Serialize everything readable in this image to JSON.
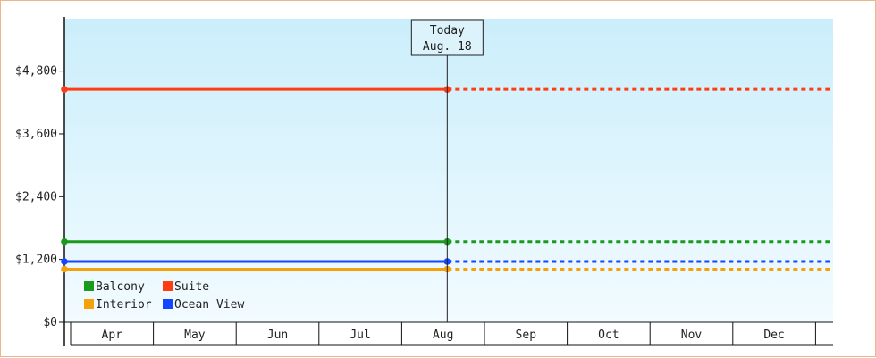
{
  "chart_data": {
    "type": "line",
    "yticks": [
      "$0",
      "$1,200",
      "$2,400",
      "$3,600",
      "$4,800"
    ],
    "ylim": [
      0,
      5800
    ],
    "categories": [
      "Apr",
      "May",
      "Jun",
      "Jul",
      "Aug",
      "Sep",
      "Oct",
      "Nov",
      "Dec"
    ],
    "today": {
      "line1": "Today",
      "line2": "Aug. 18",
      "month_index": 4.55
    },
    "series": [
      {
        "name": "Balcony",
        "color": "#1a9a1a",
        "value": 1540
      },
      {
        "name": "Suite",
        "color": "#ff3c14",
        "value": 4450
      },
      {
        "name": "Interior",
        "color": "#f5a10a",
        "value": 1015
      },
      {
        "name": "Ocean View",
        "color": "#1446ff",
        "value": 1160
      }
    ],
    "legend_placement": "bottom-left",
    "grid": false
  }
}
